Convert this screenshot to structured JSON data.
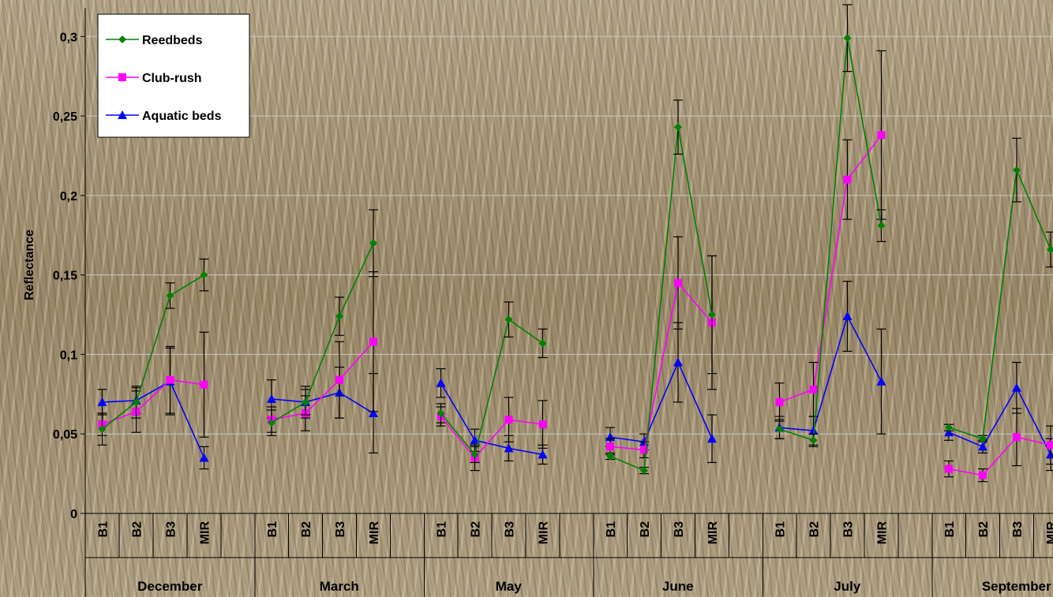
{
  "chart_data": {
    "type": "line",
    "ylabel": "Reflectance",
    "ylim": [
      0,
      0.3
    ],
    "yticks": [
      {
        "value": 0,
        "label": "0"
      },
      {
        "value": 0.05,
        "label": "0,05"
      },
      {
        "value": 0.1,
        "label": "0,1"
      },
      {
        "value": 0.15,
        "label": "0,15"
      },
      {
        "value": 0.2,
        "label": "0,2"
      },
      {
        "value": 0.25,
        "label": "0,25"
      },
      {
        "value": 0.3,
        "label": "0,3"
      }
    ],
    "groups": [
      "December",
      "March",
      "May",
      "June",
      "July",
      "September"
    ],
    "bands": [
      "B1",
      "B2",
      "B3",
      "MIR"
    ],
    "grid": true,
    "legend_position": "top-left",
    "series": [
      {
        "name": "Reedbeds",
        "color": "#008000",
        "marker": "diamond",
        "groups": [
          {
            "values": [
              0.053,
              0.07,
              0.137,
              0.15
            ],
            "errors": [
              0.01,
              0.01,
              0.008,
              0.01
            ]
          },
          {
            "values": [
              0.057,
              0.07,
              0.124,
              0.17
            ],
            "errors": [
              0.008,
              0.008,
              0.012,
              0.021
            ]
          },
          {
            "values": [
              0.063,
              0.037,
              0.122,
              0.107
            ],
            "errors": [
              0.006,
              0.005,
              0.011,
              0.009
            ]
          },
          {
            "values": [
              0.036,
              0.027,
              0.243,
              0.125
            ],
            "errors": [
              0.002,
              0.002,
              0.017,
              0.037
            ]
          },
          {
            "values": [
              0.053,
              0.046,
              0.299,
              0.181
            ],
            "errors": [
              0.006,
              0.004,
              0.021,
              0.01
            ]
          },
          {
            "values": [
              0.054,
              0.047,
              0.216,
              0.166
            ],
            "errors": [
              0.002,
              0.002,
              0.02,
              0.011
            ]
          }
        ]
      },
      {
        "name": "Club-rush",
        "color": "#ff00ff",
        "marker": "square",
        "groups": [
          {
            "values": [
              0.056,
              0.064,
              0.084,
              0.081
            ],
            "errors": [
              0.007,
              0.013,
              0.021,
              0.033
            ]
          },
          {
            "values": [
              0.059,
              0.063,
              0.084,
              0.108
            ],
            "errors": [
              0.008,
              0.011,
              0.024,
              0.044
            ]
          },
          {
            "values": [
              0.061,
              0.035,
              0.059,
              0.056
            ],
            "errors": [
              0.006,
              0.008,
              0.014,
              0.015
            ]
          },
          {
            "values": [
              0.042,
              0.04,
              0.145,
              0.12
            ],
            "errors": [
              0.005,
              0.005,
              0.029,
              0.042
            ]
          },
          {
            "values": [
              0.07,
              0.078,
              0.21,
              0.238
            ],
            "errors": [
              0.012,
              0.017,
              0.025,
              0.053
            ]
          },
          {
            "values": [
              0.028,
              0.024,
              0.048,
              0.043
            ],
            "errors": [
              0.005,
              0.004,
              0.018,
              0.012
            ]
          }
        ]
      },
      {
        "name": "Aquatic beds",
        "color": "#0000ff",
        "marker": "triangle",
        "groups": [
          {
            "values": [
              0.07,
              0.071,
              0.083,
              0.035
            ],
            "errors": [
              0.008,
              0.008,
              0.021,
              0.007
            ]
          },
          {
            "values": [
              0.072,
              0.07,
              0.076,
              0.063
            ],
            "errors": [
              0.012,
              0.01,
              0.016,
              0.025
            ]
          },
          {
            "values": [
              0.082,
              0.046,
              0.041,
              0.037
            ],
            "errors": [
              0.009,
              0.007,
              0.008,
              0.006
            ]
          },
          {
            "values": [
              0.048,
              0.045,
              0.095,
              0.047
            ],
            "errors": [
              0.006,
              0.005,
              0.025,
              0.015
            ]
          },
          {
            "values": [
              0.054,
              0.052,
              0.124,
              0.083
            ],
            "errors": [
              0.007,
              0.009,
              0.022,
              0.033
            ]
          },
          {
            "values": [
              0.051,
              0.042,
              0.079,
              0.037
            ],
            "errors": [
              0.005,
              0.004,
              0.016,
              0.01
            ]
          }
        ]
      }
    ]
  }
}
